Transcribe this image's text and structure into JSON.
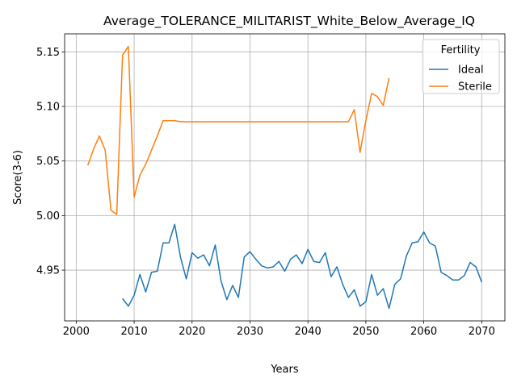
{
  "chart_data": {
    "type": "line",
    "title": "Average_TOLERANCE_MILITARIST_White_Below_Average_IQ",
    "xlabel": "Years",
    "ylabel": "Score(3-6)",
    "xlim": [
      1998,
      2074
    ],
    "ylim": [
      4.9035,
      5.1665
    ],
    "xticks": [
      2000,
      2010,
      2020,
      2030,
      2040,
      2050,
      2060,
      2070
    ],
    "yticks": [
      4.95,
      5.0,
      5.05,
      5.1,
      5.15
    ],
    "ytick_labels": [
      "4.95",
      "5.00",
      "5.05",
      "5.10",
      "5.15"
    ],
    "grid": true,
    "legend": {
      "title": "Fertility",
      "position": "top-right"
    },
    "series": [
      {
        "name": "Ideal",
        "color": "#1f77b4",
        "x": [
          2008,
          2009,
          2010,
          2011,
          2012,
          2013,
          2014,
          2015,
          2016,
          2017,
          2018,
          2019,
          2020,
          2021,
          2022,
          2023,
          2024,
          2025,
          2026,
          2027,
          2028,
          2029,
          2030,
          2031,
          2032,
          2033,
          2034,
          2035,
          2036,
          2037,
          2038,
          2039,
          2040,
          2041,
          2042,
          2043,
          2044,
          2045,
          2046,
          2047,
          2048,
          2049,
          2050,
          2051,
          2052,
          2053,
          2054,
          2055,
          2056,
          2057,
          2058,
          2059,
          2060,
          2061,
          2062,
          2063,
          2064,
          2065,
          2066,
          2067,
          2068,
          2069,
          2070
        ],
        "values": [
          4.924,
          4.917,
          4.927,
          4.946,
          4.93,
          4.948,
          4.949,
          4.975,
          4.975,
          4.992,
          4.962,
          4.942,
          4.966,
          4.961,
          4.964,
          4.954,
          4.973,
          4.94,
          4.923,
          4.936,
          4.925,
          4.962,
          4.967,
          4.96,
          4.954,
          4.952,
          4.953,
          4.958,
          4.949,
          4.96,
          4.964,
          4.956,
          4.969,
          4.958,
          4.957,
          4.966,
          4.944,
          4.953,
          4.937,
          4.925,
          4.932,
          4.917,
          4.921,
          4.946,
          4.927,
          4.933,
          4.915,
          4.937,
          4.942,
          4.963,
          4.975,
          4.976,
          4.985,
          4.975,
          4.972,
          4.948,
          4.945,
          4.941,
          4.941,
          4.945,
          4.957,
          4.953,
          4.939
        ]
      },
      {
        "name": "Sterile",
        "color": "#ff7f0e",
        "x": [
          2002,
          2003,
          2004,
          2005,
          2006,
          2007,
          2008,
          2009,
          2010,
          2011,
          2012,
          2013,
          2014,
          2015,
          2016,
          2017,
          2018,
          2019,
          2020,
          2021,
          2022,
          2023,
          2024,
          2025,
          2026,
          2027,
          2028,
          2029,
          2030,
          2031,
          2032,
          2033,
          2034,
          2035,
          2036,
          2037,
          2038,
          2039,
          2040,
          2041,
          2042,
          2043,
          2044,
          2045,
          2046,
          2047,
          2048,
          2049,
          2050,
          2051,
          2052,
          2053,
          2054
        ],
        "values": [
          5.046,
          5.061,
          5.073,
          5.06,
          5.005,
          5.001,
          5.147,
          5.155,
          5.017,
          5.037,
          5.047,
          5.06,
          5.073,
          5.087,
          5.087,
          5.087,
          5.086,
          5.086,
          5.086,
          5.086,
          5.086,
          5.086,
          5.086,
          5.086,
          5.086,
          5.086,
          5.086,
          5.086,
          5.086,
          5.086,
          5.086,
          5.086,
          5.086,
          5.086,
          5.086,
          5.086,
          5.086,
          5.086,
          5.086,
          5.086,
          5.086,
          5.086,
          5.086,
          5.086,
          5.086,
          5.086,
          5.097,
          5.058,
          5.087,
          5.112,
          5.109,
          5.101,
          5.126
        ]
      }
    ]
  }
}
